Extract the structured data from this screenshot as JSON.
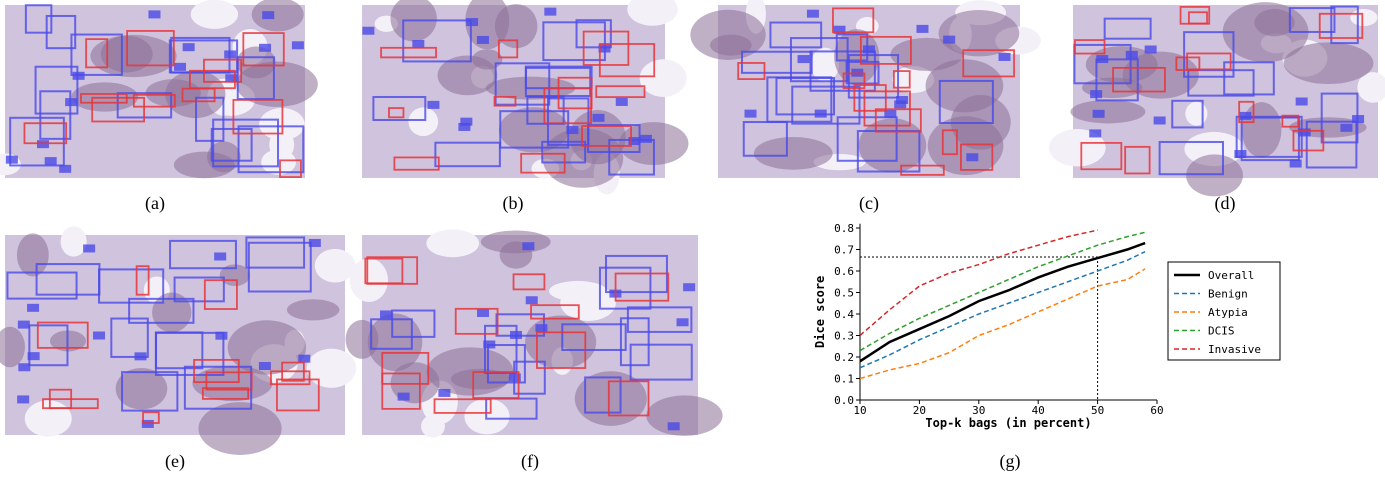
{
  "panels": [
    {
      "caption": "(a)"
    },
    {
      "caption": "(b)"
    },
    {
      "caption": "(c)"
    },
    {
      "caption": "(d)"
    },
    {
      "caption": "(e)"
    },
    {
      "caption": "(f)"
    }
  ],
  "chart_data": {
    "type": "line",
    "caption": "(g)",
    "x_label": "Top-k bags (in percent)",
    "y_label": "Dice score",
    "x": [
      10,
      15,
      20,
      25,
      30,
      35,
      40,
      45,
      50,
      55,
      58
    ],
    "series": [
      {
        "name": "Overall",
        "color": "#000000",
        "dash": false,
        "values": [
          0.18,
          0.27,
          0.33,
          0.39,
          0.46,
          0.51,
          0.57,
          0.62,
          0.66,
          0.7,
          0.73
        ]
      },
      {
        "name": "Benign",
        "color": "#1f77b4",
        "dash": true,
        "values": [
          0.15,
          0.21,
          0.28,
          0.34,
          0.4,
          0.45,
          0.5,
          0.55,
          0.6,
          0.65,
          0.69
        ]
      },
      {
        "name": "Atypia",
        "color": "#ff7f0e",
        "dash": true,
        "values": [
          0.1,
          0.14,
          0.17,
          0.22,
          0.3,
          0.35,
          0.41,
          0.47,
          0.53,
          0.56,
          0.61
        ]
      },
      {
        "name": "DCIS",
        "color": "#2ca02c",
        "dash": true,
        "values": [
          0.23,
          0.31,
          0.38,
          0.44,
          0.5,
          0.56,
          0.62,
          0.67,
          0.72,
          0.76,
          0.78
        ]
      },
      {
        "name": "Invasive",
        "color": "#d62728",
        "dash": true,
        "values": [
          0.3,
          0.42,
          0.53,
          0.59,
          0.63,
          0.68,
          0.72,
          0.76,
          0.79,
          null,
          null
        ]
      }
    ],
    "guide_x": 50,
    "guide_y": 0.665,
    "xlim": [
      10,
      60
    ],
    "ylim": [
      0,
      0.82
    ],
    "xticks": [
      10,
      20,
      30,
      40,
      50,
      60
    ],
    "yticks": [
      {
        "value": 0,
        "label": "0.0"
      },
      0.1,
      0.2,
      0.3,
      0.4,
      0.5,
      0.6,
      0.7,
      0.8
    ],
    "legend": "right"
  }
}
